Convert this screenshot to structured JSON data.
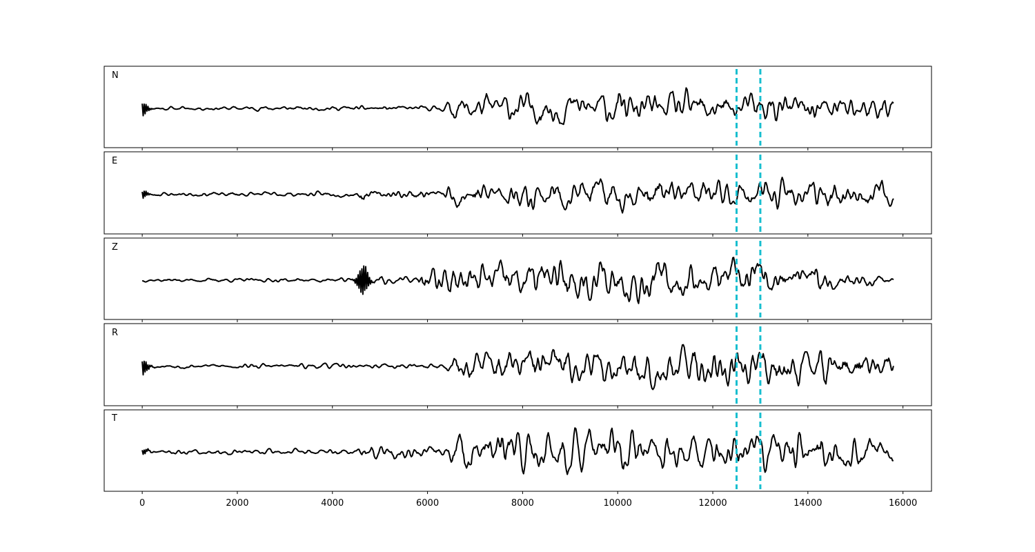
{
  "chart_data": {
    "type": "line",
    "xlim": [
      -800,
      16600
    ],
    "x_ticks": [
      0,
      2000,
      4000,
      6000,
      8000,
      10000,
      12000,
      14000,
      16000
    ],
    "x_tick_labels": [
      "0",
      "2000",
      "4000",
      "6000",
      "8000",
      "10000",
      "12000",
      "14000",
      "16000"
    ],
    "x_range": [
      0,
      15800
    ],
    "markers": [
      12500,
      13000
    ],
    "marker_color": "#17becf",
    "trace_color": "#000000",
    "grid": false,
    "panels": [
      {
        "label": "N",
        "seed": 11,
        "pulse_at": 0,
        "pulse_amp": 0.16,
        "envelope": [
          [
            0,
            0.04
          ],
          [
            6300,
            0.05
          ],
          [
            6600,
            0.28
          ],
          [
            8600,
            0.34
          ],
          [
            11000,
            0.34
          ],
          [
            12800,
            0.3
          ],
          [
            15800,
            0.26
          ]
        ]
      },
      {
        "label": "E",
        "seed": 23,
        "pulse_at": 0,
        "pulse_amp": 0.09,
        "envelope": [
          [
            0,
            0.04
          ],
          [
            4500,
            0.05
          ],
          [
            4650,
            0.18
          ],
          [
            4900,
            0.06
          ],
          [
            5750,
            0.1
          ],
          [
            6300,
            0.12
          ],
          [
            6600,
            0.26
          ],
          [
            9000,
            0.32
          ],
          [
            12000,
            0.28
          ],
          [
            15800,
            0.28
          ]
        ]
      },
      {
        "label": "Z",
        "seed": 37,
        "pulse_at": 4650,
        "pulse_amp": 0.35,
        "envelope": [
          [
            0,
            0.03
          ],
          [
            4500,
            0.04
          ],
          [
            4700,
            0.12
          ],
          [
            5800,
            0.06
          ],
          [
            5850,
            0.22
          ],
          [
            6400,
            0.32
          ],
          [
            8700,
            0.4
          ],
          [
            11000,
            0.38
          ],
          [
            13000,
            0.34
          ],
          [
            15800,
            0.1
          ]
        ]
      },
      {
        "label": "R",
        "seed": 53,
        "pulse_at": 0,
        "pulse_amp": 0.18,
        "envelope": [
          [
            0,
            0.04
          ],
          [
            6400,
            0.05
          ],
          [
            6600,
            0.26
          ],
          [
            8700,
            0.36
          ],
          [
            11000,
            0.36
          ],
          [
            14500,
            0.38
          ],
          [
            15800,
            0.2
          ]
        ]
      },
      {
        "label": "T",
        "seed": 71,
        "pulse_at": 0,
        "pulse_amp": 0.06,
        "envelope": [
          [
            0,
            0.05
          ],
          [
            4500,
            0.06
          ],
          [
            4700,
            0.14
          ],
          [
            6300,
            0.1
          ],
          [
            6600,
            0.34
          ],
          [
            8500,
            0.42
          ],
          [
            12000,
            0.36
          ],
          [
            15800,
            0.3
          ]
        ]
      }
    ]
  }
}
